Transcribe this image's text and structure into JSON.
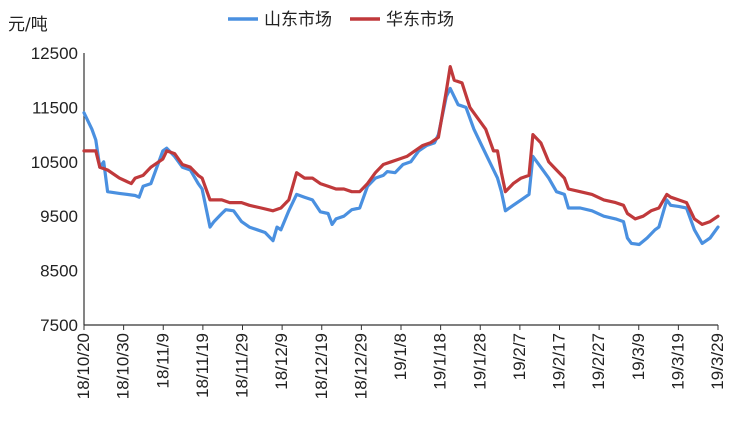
{
  "chart_data": {
    "type": "line",
    "unit_label": "元/吨",
    "legend_position": "top",
    "ylim": [
      7500,
      12500
    ],
    "y_ticks": [
      "12500",
      "11500",
      "10500",
      "9500",
      "8500",
      "7500"
    ],
    "x_ticks": [
      "18/10/20",
      "18/10/30",
      "18/11/9",
      "18/11/19",
      "18/11/29",
      "18/12/9",
      "18/12/19",
      "18/12/29",
      "19/1/8",
      "19/1/18",
      "19/1/28",
      "19/2/7",
      "19/2/17",
      "19/2/27",
      "19/3/9",
      "19/3/19",
      "19/3/29"
    ],
    "x_range": [
      "2018-10-20",
      "2019-03-30"
    ],
    "grid": false,
    "series": [
      {
        "name": "山东市场",
        "color": "#4a90e0",
        "points": [
          [
            "2018-10-20",
            11400
          ],
          [
            "2018-10-22",
            11100
          ],
          [
            "2018-10-23",
            10900
          ],
          [
            "2018-10-24",
            10400
          ],
          [
            "2018-10-25",
            10500
          ],
          [
            "2018-10-26",
            9950
          ],
          [
            "2018-10-29",
            9920
          ],
          [
            "2018-11-02",
            9880
          ],
          [
            "2018-11-03",
            9850
          ],
          [
            "2018-11-04",
            10050
          ],
          [
            "2018-11-06",
            10100
          ],
          [
            "2018-11-09",
            10700
          ],
          [
            "2018-11-10",
            10750
          ],
          [
            "2018-11-12",
            10600
          ],
          [
            "2018-11-14",
            10400
          ],
          [
            "2018-11-16",
            10350
          ],
          [
            "2018-11-18",
            10100
          ],
          [
            "2018-11-19",
            10000
          ],
          [
            "2018-11-21",
            9300
          ],
          [
            "2018-11-22",
            9400
          ],
          [
            "2018-11-24",
            9550
          ],
          [
            "2018-11-25",
            9620
          ],
          [
            "2018-11-27",
            9600
          ],
          [
            "2018-11-29",
            9400
          ],
          [
            "2018-12-01",
            9300
          ],
          [
            "2018-12-03",
            9250
          ],
          [
            "2018-12-05",
            9200
          ],
          [
            "2018-12-07",
            9050
          ],
          [
            "2018-12-08",
            9300
          ],
          [
            "2018-12-09",
            9250
          ],
          [
            "2018-12-11",
            9600
          ],
          [
            "2018-12-13",
            9900
          ],
          [
            "2018-12-15",
            9850
          ],
          [
            "2018-12-17",
            9800
          ],
          [
            "2018-12-19",
            9580
          ],
          [
            "2018-12-21",
            9550
          ],
          [
            "2018-12-22",
            9350
          ],
          [
            "2018-12-23",
            9450
          ],
          [
            "2018-12-25",
            9500
          ],
          [
            "2018-12-27",
            9620
          ],
          [
            "2018-12-29",
            9650
          ],
          [
            "2018-12-31",
            10050
          ],
          [
            "2019-01-02",
            10200
          ],
          [
            "2019-01-04",
            10250
          ],
          [
            "2019-01-05",
            10320
          ],
          [
            "2019-01-07",
            10300
          ],
          [
            "2019-01-09",
            10450
          ],
          [
            "2019-01-11",
            10500
          ],
          [
            "2019-01-13",
            10700
          ],
          [
            "2019-01-15",
            10800
          ],
          [
            "2019-01-17",
            10850
          ],
          [
            "2019-01-18",
            11000
          ],
          [
            "2019-01-20",
            11700
          ],
          [
            "2019-01-21",
            11850
          ],
          [
            "2019-01-23",
            11550
          ],
          [
            "2019-01-25",
            11500
          ],
          [
            "2019-01-27",
            11100
          ],
          [
            "2019-01-29",
            10800
          ],
          [
            "2019-01-31",
            10500
          ],
          [
            "2019-02-02",
            10200
          ],
          [
            "2019-02-03",
            9950
          ],
          [
            "2019-02-04",
            9600
          ],
          [
            "2019-02-06",
            9700
          ],
          [
            "2019-02-08",
            9800
          ],
          [
            "2019-02-10",
            9900
          ],
          [
            "2019-02-11",
            10600
          ],
          [
            "2019-02-13",
            10400
          ],
          [
            "2019-02-15",
            10200
          ],
          [
            "2019-02-17",
            9950
          ],
          [
            "2019-02-19",
            9900
          ],
          [
            "2019-02-20",
            9650
          ],
          [
            "2019-02-23",
            9650
          ],
          [
            "2019-02-26",
            9600
          ],
          [
            "2019-03-01",
            9500
          ],
          [
            "2019-03-04",
            9450
          ],
          [
            "2019-03-06",
            9400
          ],
          [
            "2019-03-07",
            9100
          ],
          [
            "2019-03-08",
            9000
          ],
          [
            "2019-03-10",
            8980
          ],
          [
            "2019-03-12",
            9100
          ],
          [
            "2019-03-14",
            9250
          ],
          [
            "2019-03-15",
            9300
          ],
          [
            "2019-03-17",
            9800
          ],
          [
            "2019-03-18",
            9700
          ],
          [
            "2019-03-20",
            9680
          ],
          [
            "2019-03-22",
            9650
          ],
          [
            "2019-03-24",
            9250
          ],
          [
            "2019-03-26",
            9000
          ],
          [
            "2019-03-28",
            9100
          ],
          [
            "2019-03-30",
            9300
          ]
        ]
      },
      {
        "name": "华东市场",
        "color": "#c0393b",
        "points": [
          [
            "2018-10-20",
            10700
          ],
          [
            "2018-10-23",
            10700
          ],
          [
            "2018-10-24",
            10400
          ],
          [
            "2018-10-26",
            10350
          ],
          [
            "2018-10-29",
            10200
          ],
          [
            "2018-11-01",
            10100
          ],
          [
            "2018-11-02",
            10200
          ],
          [
            "2018-11-04",
            10250
          ],
          [
            "2018-11-06",
            10400
          ],
          [
            "2018-11-09",
            10550
          ],
          [
            "2018-11-10",
            10700
          ],
          [
            "2018-11-12",
            10650
          ],
          [
            "2018-11-14",
            10450
          ],
          [
            "2018-11-16",
            10400
          ],
          [
            "2018-11-18",
            10250
          ],
          [
            "2018-11-19",
            10200
          ],
          [
            "2018-11-21",
            9800
          ],
          [
            "2018-11-24",
            9800
          ],
          [
            "2018-11-26",
            9750
          ],
          [
            "2018-11-29",
            9750
          ],
          [
            "2018-12-01",
            9700
          ],
          [
            "2018-12-04",
            9650
          ],
          [
            "2018-12-07",
            9600
          ],
          [
            "2018-12-09",
            9650
          ],
          [
            "2018-12-11",
            9800
          ],
          [
            "2018-12-13",
            10300
          ],
          [
            "2018-12-15",
            10200
          ],
          [
            "2018-12-17",
            10200
          ],
          [
            "2018-12-19",
            10100
          ],
          [
            "2018-12-21",
            10050
          ],
          [
            "2018-12-23",
            10000
          ],
          [
            "2018-12-25",
            10000
          ],
          [
            "2018-12-27",
            9950
          ],
          [
            "2018-12-29",
            9950
          ],
          [
            "2018-12-31",
            10100
          ],
          [
            "2019-01-02",
            10300
          ],
          [
            "2019-01-04",
            10450
          ],
          [
            "2019-01-06",
            10500
          ],
          [
            "2019-01-08",
            10550
          ],
          [
            "2019-01-10",
            10600
          ],
          [
            "2019-01-12",
            10700
          ],
          [
            "2019-01-14",
            10800
          ],
          [
            "2019-01-16",
            10850
          ],
          [
            "2019-01-18",
            10950
          ],
          [
            "2019-01-20",
            11800
          ],
          [
            "2019-01-21",
            12250
          ],
          [
            "2019-01-22",
            12000
          ],
          [
            "2019-01-24",
            11950
          ],
          [
            "2019-01-26",
            11500
          ],
          [
            "2019-01-28",
            11300
          ],
          [
            "2019-01-30",
            11100
          ],
          [
            "2019-02-01",
            10700
          ],
          [
            "2019-02-02",
            10700
          ],
          [
            "2019-02-03",
            10300
          ],
          [
            "2019-02-04",
            9950
          ],
          [
            "2019-02-06",
            10100
          ],
          [
            "2019-02-08",
            10200
          ],
          [
            "2019-02-10",
            10250
          ],
          [
            "2019-02-11",
            11000
          ],
          [
            "2019-02-13",
            10850
          ],
          [
            "2019-02-15",
            10500
          ],
          [
            "2019-02-17",
            10350
          ],
          [
            "2019-02-19",
            10200
          ],
          [
            "2019-02-20",
            10000
          ],
          [
            "2019-02-23",
            9950
          ],
          [
            "2019-02-26",
            9900
          ],
          [
            "2019-03-01",
            9800
          ],
          [
            "2019-03-04",
            9750
          ],
          [
            "2019-03-06",
            9700
          ],
          [
            "2019-03-07",
            9550
          ],
          [
            "2019-03-09",
            9450
          ],
          [
            "2019-03-11",
            9500
          ],
          [
            "2019-03-13",
            9600
          ],
          [
            "2019-03-15",
            9650
          ],
          [
            "2019-03-17",
            9900
          ],
          [
            "2019-03-18",
            9850
          ],
          [
            "2019-03-20",
            9800
          ],
          [
            "2019-03-22",
            9750
          ],
          [
            "2019-03-24",
            9450
          ],
          [
            "2019-03-26",
            9350
          ],
          [
            "2019-03-28",
            9400
          ],
          [
            "2019-03-30",
            9500
          ]
        ]
      }
    ]
  }
}
